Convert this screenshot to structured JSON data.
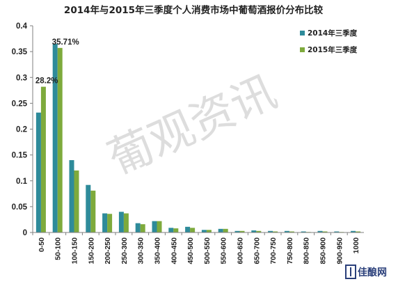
{
  "chart_data": {
    "type": "bar",
    "title": "2014年与2015年三季度个人消费市场中葡萄酒报价分布比较",
    "xlabel": "",
    "ylabel": "",
    "categories": [
      "0-50",
      "50-100",
      "100-150",
      "150-200",
      "200-250",
      "250-300",
      "300-350",
      "350-400",
      "400-450",
      "450-500",
      "500-550",
      "550-600",
      "600-650",
      "650-700",
      "700-750",
      "750-800",
      "800-850",
      "850-900",
      "900-950",
      "1000"
    ],
    "series": [
      {
        "name": "2014年三季度",
        "color": "#2e8b9a",
        "values": [
          0.232,
          0.365,
          0.14,
          0.092,
          0.037,
          0.04,
          0.018,
          0.022,
          0.009,
          0.011,
          0.005,
          0.007,
          0.003,
          0.004,
          0.003,
          0.003,
          0.002,
          0.003,
          0.002,
          0.003
        ]
      },
      {
        "name": "2015年三季度",
        "color": "#7eaa3c",
        "values": [
          0.282,
          0.3571,
          0.12,
          0.081,
          0.036,
          0.037,
          0.016,
          0.022,
          0.008,
          0.009,
          0.005,
          0.007,
          0.003,
          0.003,
          0.002,
          0.002,
          0.001,
          0.002,
          0.001,
          0.002
        ]
      }
    ],
    "yticks": [
      "0",
      "0.05",
      "0.1",
      "0.15",
      "0.2",
      "0.25",
      "0.3",
      "0.35",
      "0.4"
    ],
    "ylim": [
      0,
      0.4
    ],
    "grid": false,
    "legend_position": "top-right",
    "annotations": [
      {
        "text": "28.2%",
        "series": 1,
        "category": 0
      },
      {
        "text": "35.71%",
        "series": 1,
        "category": 1
      }
    ]
  },
  "watermark": "葡观资讯",
  "logo": {
    "text": "佳酿网"
  }
}
